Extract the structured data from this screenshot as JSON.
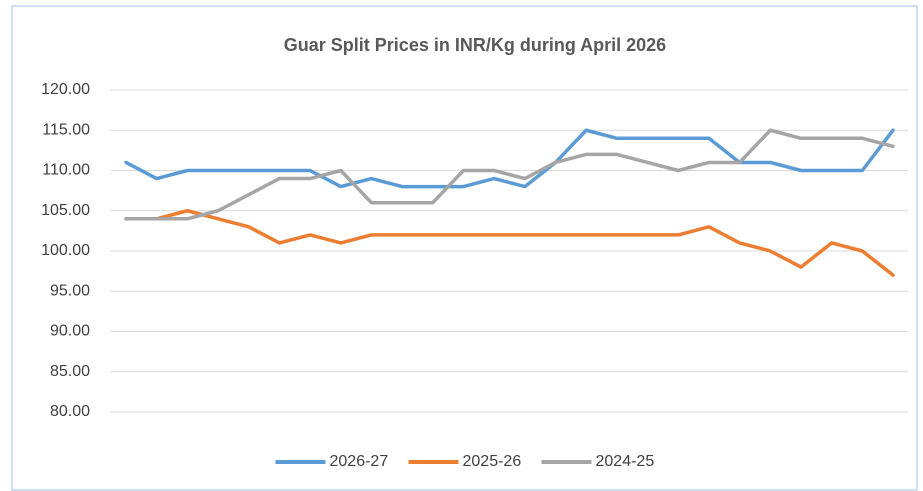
{
  "chart_data": {
    "type": "line",
    "title": "Guar Split Prices in INR/Kg during April 2026",
    "categories": [
      null,
      null,
      null,
      null,
      null,
      null,
      null,
      null,
      null,
      null,
      null,
      null,
      null,
      null,
      null,
      null,
      null,
      null,
      null,
      null,
      null,
      null,
      null,
      null,
      null,
      null
    ],
    "series": [
      {
        "name": "2026-27",
        "color": "#5b9bd5",
        "values": [
          111,
          109,
          110,
          110,
          110,
          110,
          110,
          108,
          109,
          108,
          108,
          108,
          109,
          108,
          111,
          115,
          114,
          114,
          114,
          114,
          111,
          111,
          110,
          110,
          110,
          115
        ]
      },
      {
        "name": "2025-26",
        "color": "#ed7d31",
        "values": [
          104,
          104,
          105,
          104,
          103,
          101,
          102,
          101,
          102,
          102,
          102,
          102,
          102,
          102,
          102,
          102,
          102,
          102,
          102,
          103,
          101,
          100,
          98,
          101,
          100,
          97
        ]
      },
      {
        "name": "2024-25",
        "color": "#a5a5a5",
        "values": [
          104,
          104,
          104,
          105,
          107,
          109,
          109,
          110,
          106,
          106,
          106,
          110,
          110,
          109,
          111,
          112,
          112,
          111,
          110,
          111,
          111,
          115,
          114,
          114,
          114,
          113
        ]
      }
    ],
    "ylim": [
      80,
      120
    ],
    "yticks": [
      {
        "value": 80,
        "label": "80.00"
      },
      {
        "value": 85,
        "label": "85.00"
      },
      {
        "value": 90,
        "label": "90.00"
      },
      {
        "value": 95,
        "label": "95.00"
      },
      {
        "value": 100,
        "label": "100.00"
      },
      {
        "value": 105,
        "label": "105.00"
      },
      {
        "value": 110,
        "label": "110.00"
      },
      {
        "value": 115,
        "label": "115.00"
      },
      {
        "value": 120,
        "label": "120.00"
      }
    ],
    "grid": true,
    "legend": "bottom"
  }
}
